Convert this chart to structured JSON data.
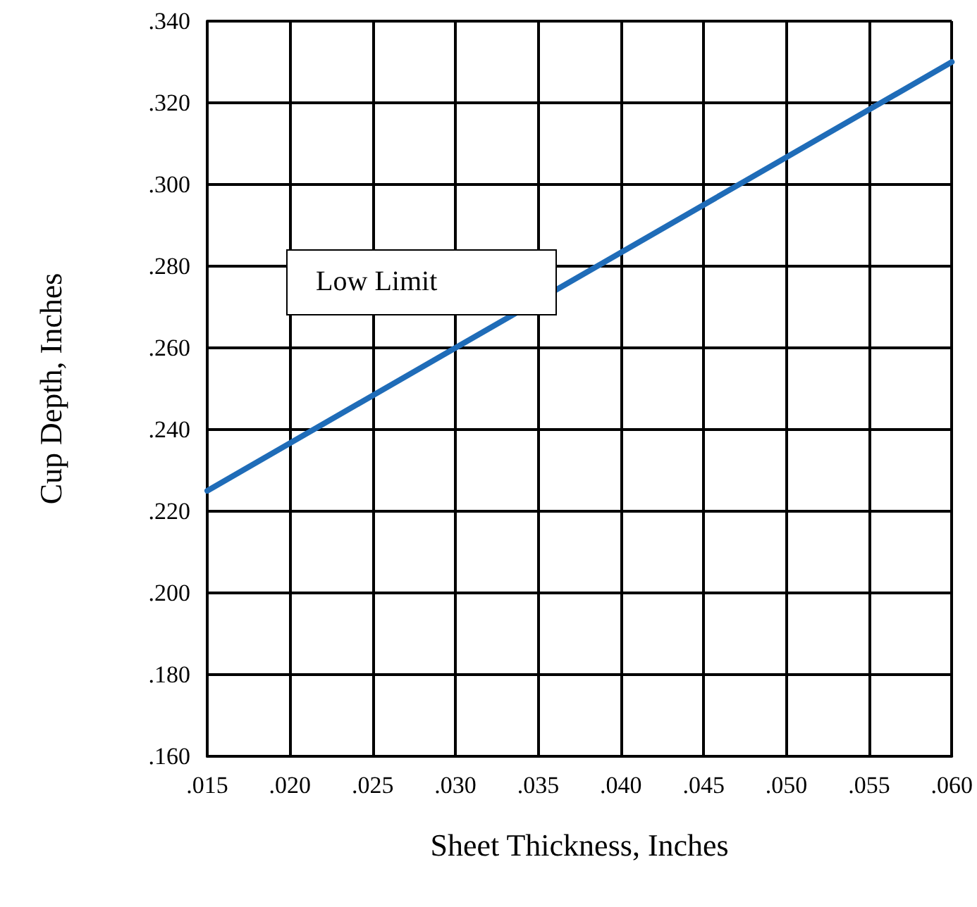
{
  "chart_data": {
    "type": "line",
    "xlabel": "Sheet Thickness, Inches",
    "ylabel": "Cup Depth, Inches",
    "x": [
      0.015,
      0.03,
      0.045,
      0.06
    ],
    "series": [
      {
        "name": "Low Limit",
        "color": "#1f6cb8",
        "values": [
          0.225,
          0.26,
          0.295,
          0.33
        ]
      }
    ],
    "xlim": [
      0.015,
      0.06
    ],
    "xticks": [
      {
        "value": 0.015,
        "label": ".015"
      },
      {
        "value": 0.02,
        "label": ".020"
      },
      {
        "value": 0.025,
        "label": ".025"
      },
      {
        "value": 0.03,
        "label": ".030"
      },
      {
        "value": 0.035,
        "label": ".035"
      },
      {
        "value": 0.04,
        "label": ".040"
      },
      {
        "value": 0.045,
        "label": ".045"
      },
      {
        "value": 0.05,
        "label": ".050"
      },
      {
        "value": 0.055,
        "label": ".055"
      },
      {
        "value": 0.06,
        "label": ".060"
      }
    ],
    "ylim": [
      0.16,
      0.34
    ],
    "yticks": [
      {
        "value": 0.16,
        "label": ".160"
      },
      {
        "value": 0.18,
        "label": ".180"
      },
      {
        "value": 0.2,
        "label": ".200"
      },
      {
        "value": 0.22,
        "label": ".220"
      },
      {
        "value": 0.24,
        "label": ".240"
      },
      {
        "value": 0.26,
        "label": ".260"
      },
      {
        "value": 0.28,
        "label": ".280"
      },
      {
        "value": 0.3,
        "label": ".300"
      },
      {
        "value": 0.32,
        "label": ".320"
      },
      {
        "value": 0.34,
        "label": ".340"
      }
    ],
    "grid": true,
    "marker": "none",
    "line_style": "solid"
  }
}
